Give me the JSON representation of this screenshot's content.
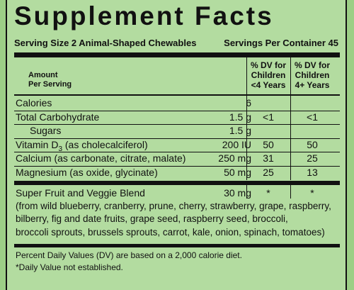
{
  "title": "Supplement Facts",
  "serving_size": "Serving Size 2 Animal-Shaped Chewables",
  "servings_per_container": "Servings Per Container 45",
  "header": {
    "amount": [
      "Amount",
      "Per Serving"
    ],
    "dv1": [
      "% DV for",
      "Children",
      "<4 Years"
    ],
    "dv2": [
      "% DV for",
      "Children",
      "4+ Years"
    ]
  },
  "rows": [
    {
      "label": "Calories",
      "amount": "6"
    },
    {
      "label": "Total Carbohydrate",
      "amount": "1.5 g",
      "dv1": "<1",
      "dv2": "<1"
    },
    {
      "label": "Sugars",
      "amount": "1.5 g"
    },
    {
      "label": "Vitamin D",
      "subscript": "3",
      "suffix": "(as cholecalciferol)",
      "amount": "200 IU",
      "dv1": "50",
      "dv2": "50"
    },
    {
      "label": "Calcium (as carbonate, citrate, malate)",
      "amount": "250 mg",
      "dv1": "31",
      "dv2": "25"
    },
    {
      "label": "Magnesium (as oxide, glycinate)",
      "amount": "50 mg",
      "dv1": "25",
      "dv2": "13"
    }
  ],
  "blend": {
    "label": "Super Fruit and Veggie Blend",
    "amount": "30 mg",
    "dv1": "*",
    "dv2": "*",
    "lines": [
      "(from wild blueberry, cranberry, prune, cherry, strawberry, grape, raspberry,",
      "bilberry, fig and date fruits, grape seed, raspberry seed,  broccoli,",
      "broccoli sprouts, brussels sprouts, carrot, kale, onion, spinach, tomatoes)"
    ]
  },
  "footnotes": [
    "Percent Daily Values (DV) are based on a 2,000 calorie diet.",
    "*Daily Value not established."
  ]
}
